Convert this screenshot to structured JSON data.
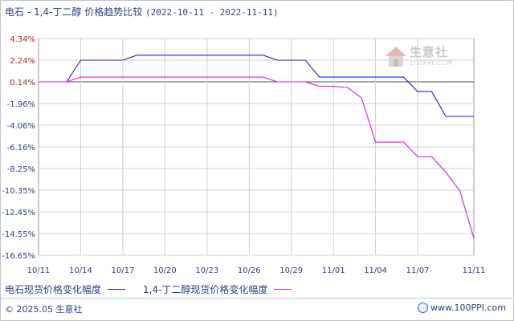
{
  "title": {
    "main": "电石 - 1,4-丁二醇 价格趋势比较",
    "date_range": "(2022-10-11 - 2022-11-11)"
  },
  "watermark": {
    "name": "生意社",
    "url": "100PPI.COM"
  },
  "legend": [
    {
      "label": "电石现货价格变化幅度",
      "color": "#1a1aff"
    },
    {
      "label": "1,4-丁二醇现货价格变化幅度",
      "color": "#e01ee0"
    }
  ],
  "footer": {
    "copyright": "© 2025.05 生意社",
    "site": "www.100PPI.com"
  },
  "colors": {
    "axis_label_red": "#c0282a",
    "axis_label_blue": "#2d3f8c",
    "grid": "#d0d0d0",
    "zero_line": "#555555"
  },
  "chart_data": {
    "type": "line",
    "title": "电石 - 1,4-丁二醇 价格趋势比较",
    "x_tick_labels": [
      "10/11",
      "10/14",
      "10/17",
      "10/20",
      "10/23",
      "10/26",
      "10/29",
      "11/01",
      "11/04",
      "11/07",
      "11/11"
    ],
    "y_tick_labels": [
      "4.34%",
      "2.24%",
      "0.14%",
      "-1.96%",
      "-4.06%",
      "-6.16%",
      "-8.25%",
      "-10.35%",
      "-12.45%",
      "-14.55%",
      "-16.65%"
    ],
    "ylim": [
      -16.65,
      4.34
    ],
    "grid": true,
    "legend_position": "bottom",
    "x": [
      "10/11",
      "10/12",
      "10/13",
      "10/14",
      "10/15",
      "10/16",
      "10/17",
      "10/18",
      "10/19",
      "10/20",
      "10/21",
      "10/22",
      "10/23",
      "10/24",
      "10/25",
      "10/26",
      "10/27",
      "10/28",
      "10/29",
      "10/30",
      "10/31",
      "11/01",
      "11/02",
      "11/03",
      "11/04",
      "11/05",
      "11/06",
      "11/07",
      "11/08",
      "11/09",
      "11/10",
      "11/11"
    ],
    "series": [
      {
        "name": "电石现货价格变化幅度",
        "color": "#1a1aff",
        "values": [
          0.14,
          0.14,
          0.14,
          2.24,
          2.24,
          2.24,
          2.24,
          2.72,
          2.72,
          2.72,
          2.72,
          2.72,
          2.72,
          2.72,
          2.72,
          2.72,
          2.72,
          2.24,
          2.24,
          2.24,
          0.6,
          0.6,
          0.6,
          0.6,
          0.6,
          0.6,
          0.6,
          -0.8,
          -0.8,
          -3.2,
          -3.2,
          -3.2
        ]
      },
      {
        "name": "1,4-丁二醇现货价格变化幅度",
        "color": "#e01ee0",
        "values": [
          0.14,
          0.14,
          0.14,
          0.6,
          0.6,
          0.6,
          0.6,
          0.6,
          0.6,
          0.6,
          0.6,
          0.6,
          0.6,
          0.6,
          0.6,
          0.6,
          0.6,
          0.14,
          0.14,
          0.14,
          -0.3,
          -0.3,
          -0.4,
          -1.4,
          -5.7,
          -5.7,
          -5.7,
          -7.1,
          -7.1,
          -8.6,
          -10.4,
          -15.0
        ]
      }
    ]
  }
}
